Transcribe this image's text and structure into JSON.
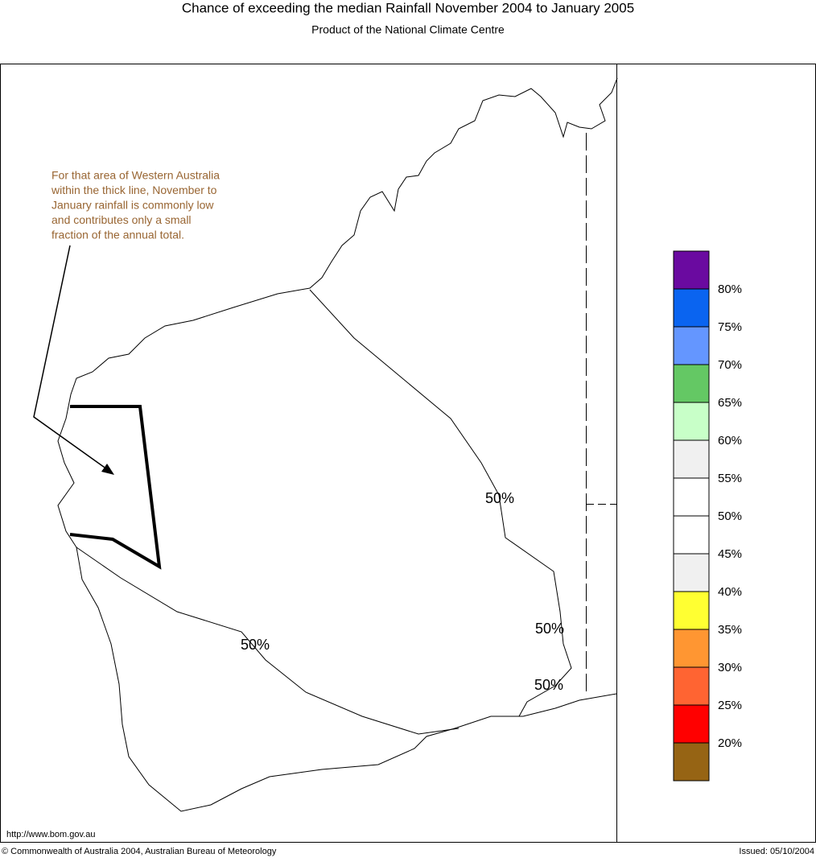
{
  "header": {
    "title": "Chance of exceeding the median Rainfall November 2004 to January 2005",
    "subtitle": "Product of the National Climate Centre"
  },
  "annotation": {
    "lines": [
      "For that area of Western Australia",
      "within the thick line, November to",
      "January rainfall is commonly low",
      "and contributes only a small",
      "fraction of the annual total."
    ]
  },
  "contour_labels": [
    "50%",
    "50%",
    "50%",
    "50%"
  ],
  "legend": {
    "colors": [
      "#6a0aa0",
      "#0a64f0",
      "#6496ff",
      "#64c864",
      "#c8ffc8",
      "#f0f0f0",
      "#ffffff",
      "#ffffff",
      "#f0f0f0",
      "#ffff32",
      "#ff9632",
      "#ff6432",
      "#ff0000",
      "#966414"
    ],
    "labels": [
      "80%",
      "75%",
      "70%",
      "65%",
      "60%",
      "55%",
      "50%",
      "45%",
      "40%",
      "35%",
      "30%",
      "25%",
      "20%"
    ]
  },
  "footer": {
    "url": "http://www.bom.gov.au",
    "copyright": "© Commonwealth of Australia 2004, Australian Bureau of Meteorology",
    "issued": "Issued: 05/10/2004"
  }
}
